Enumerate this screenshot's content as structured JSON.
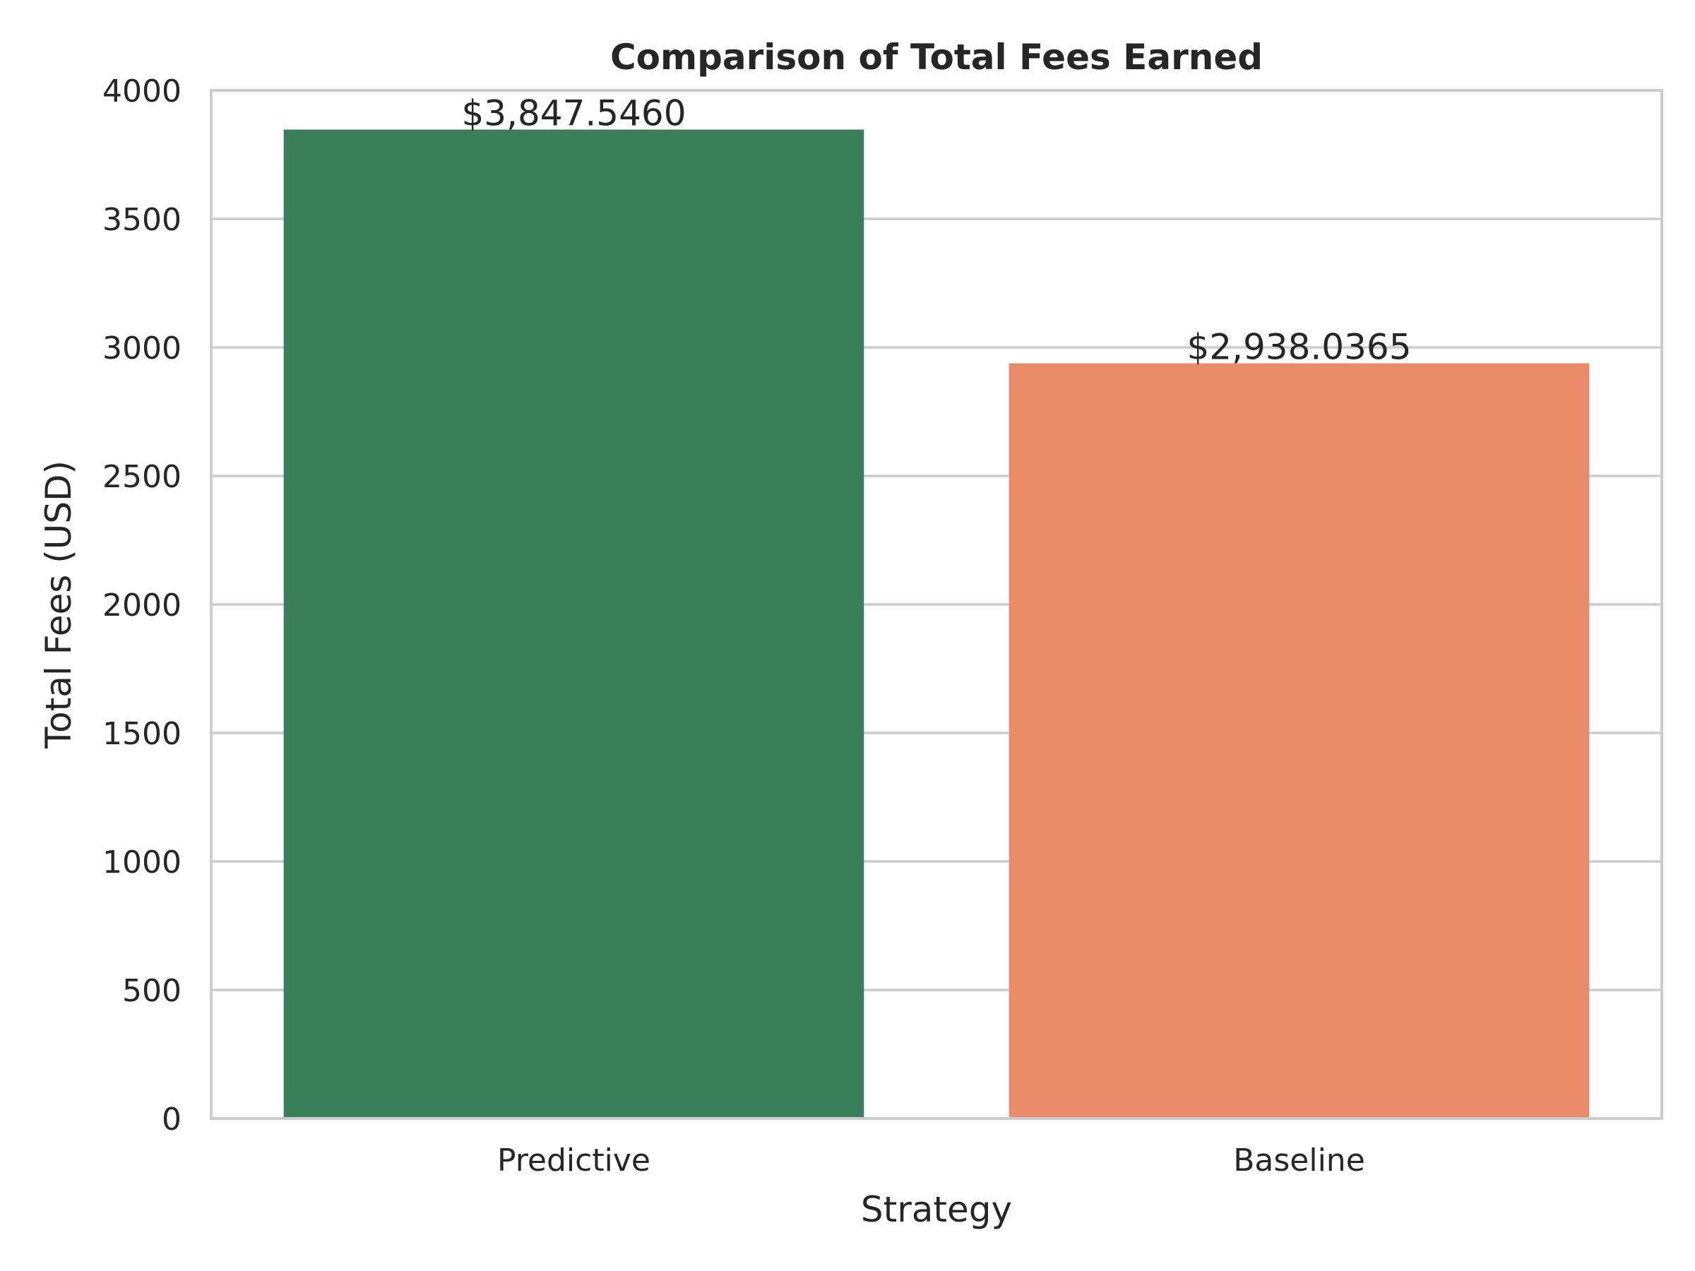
{
  "chart_data": {
    "type": "bar",
    "title": "Comparison of Total Fees Earned",
    "xlabel": "Strategy",
    "ylabel": "Total Fees (USD)",
    "categories": [
      "Predictive",
      "Baseline"
    ],
    "values": [
      3847.546,
      2938.0365
    ],
    "value_labels": [
      "$3,847.5460",
      "$2,938.0365"
    ],
    "colors": [
      "#3b7f5a",
      "#e98a68"
    ],
    "ylim": [
      0,
      4000
    ],
    "yticks": [
      0,
      500,
      1000,
      1500,
      2000,
      2500,
      3000,
      3500,
      4000
    ],
    "ytick_labels": [
      "0",
      "500",
      "1000",
      "1500",
      "2000",
      "2500",
      "3000",
      "3500",
      "4000"
    ],
    "grid": "horizontal",
    "legend": "none"
  }
}
